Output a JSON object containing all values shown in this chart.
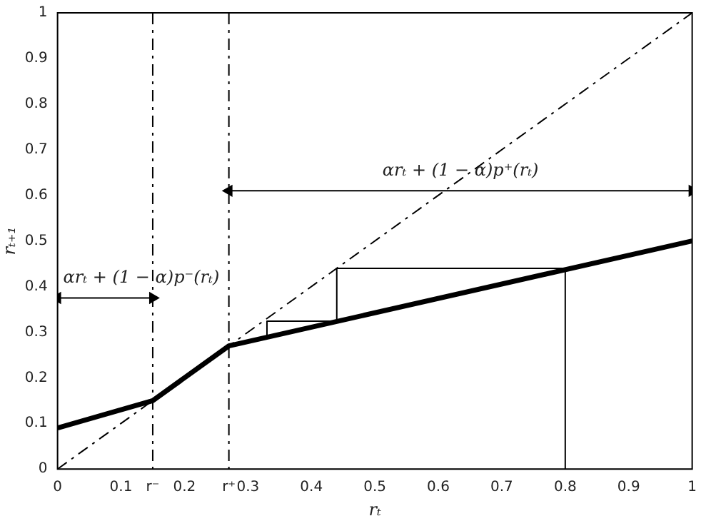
{
  "chart_data": {
    "type": "line",
    "xlabel": "rₜ",
    "ylabel": "rₜ₊₁",
    "xlim": [
      0,
      1
    ],
    "ylim": [
      0,
      1
    ],
    "xticks": [
      0,
      0.1,
      {
        "value": 0.15,
        "label": "r⁻"
      },
      0.2,
      {
        "value": 0.27,
        "label": "r⁺"
      },
      0.3,
      0.4,
      0.5,
      0.6,
      0.7,
      0.8,
      0.9,
      1
    ],
    "yticks": [
      0,
      0.1,
      0.2,
      0.3,
      0.4,
      0.5,
      0.6,
      0.7,
      0.8,
      0.9,
      1
    ],
    "grid": false,
    "legend": false,
    "series": [
      {
        "color": "#000000",
        "x": [
          0,
          0.15,
          0.27,
          1
        ],
        "values": [
          0.09,
          0.15,
          0.27,
          0.5
        ]
      },
      {
        "color": "#000000",
        "x": [
          0,
          1
        ],
        "values": [
          0,
          1
        ],
        "line_style": "dashed"
      },
      {
        "color": "#000000",
        "x": [
          0.8,
          0.8,
          0.44,
          0.44,
          0.33,
          0.33
        ],
        "values": [
          0,
          0.44,
          0.44,
          0.324,
          0.324,
          0.29
        ]
      },
      {
        "color": "#000000",
        "x": [
          0,
          0.15
        ],
        "values": [
          0.375,
          0.375
        ],
        "marker": "triangle"
      },
      {
        "color": "#000000",
        "x": [
          0.27,
          1
        ],
        "values": [
          0.61,
          0.61
        ],
        "marker": "triangle"
      }
    ],
    "ref_lines": [
      {
        "axis": "x",
        "value": 0.15,
        "line_style": "dashed"
      },
      {
        "axis": "x",
        "value": 0.27,
        "line_style": "dashed"
      }
    ],
    "annotations": [
      "αrₜ + (1 − α)p⁻(rₜ)",
      "αrₜ + (1 − α)p⁺(rₜ)"
    ]
  }
}
